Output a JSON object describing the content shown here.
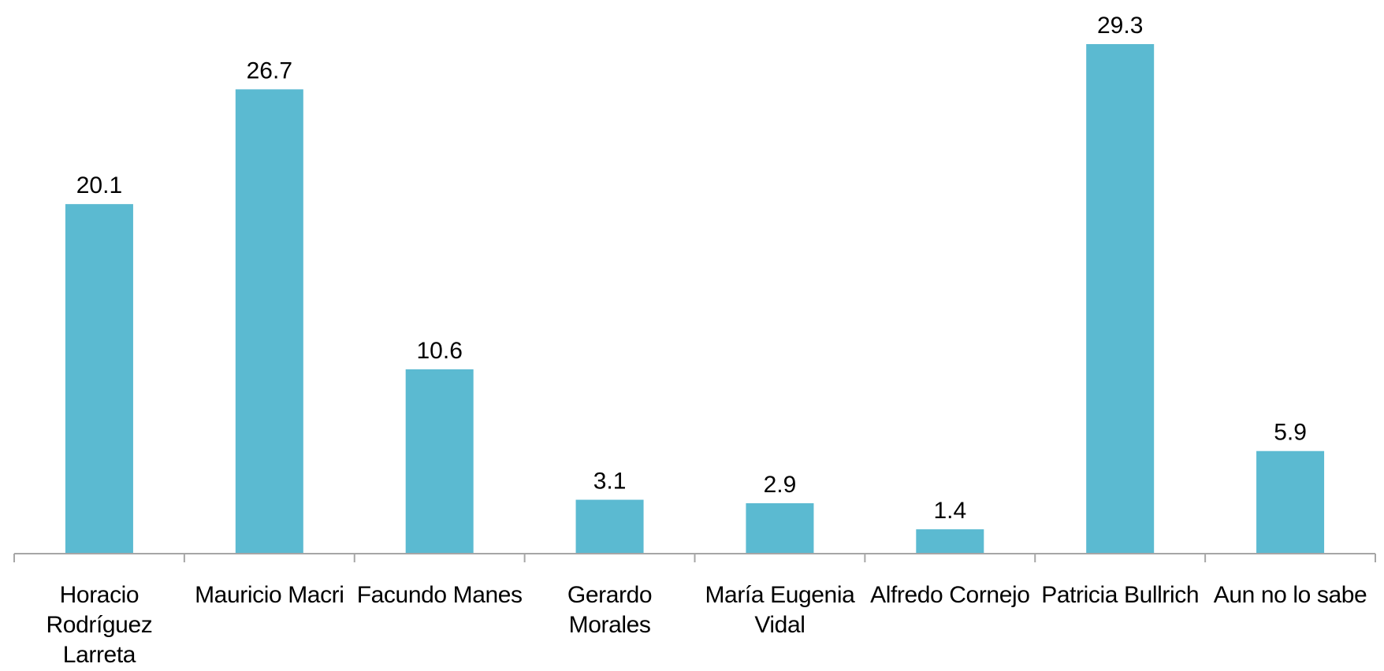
{
  "chart_data": {
    "type": "bar",
    "categories": [
      "Horacio Rodríguez Larreta",
      "Mauricio Macri",
      "Facundo Manes",
      "Gerardo Morales",
      "María Eugenia Vidal",
      "Alfredo Cornejo",
      "Patricia Bullrich",
      "Aun no lo sabe"
    ],
    "values": [
      20.1,
      26.7,
      10.6,
      3.1,
      2.9,
      1.4,
      29.3,
      5.9
    ],
    "color": "#5bbad1"
  }
}
